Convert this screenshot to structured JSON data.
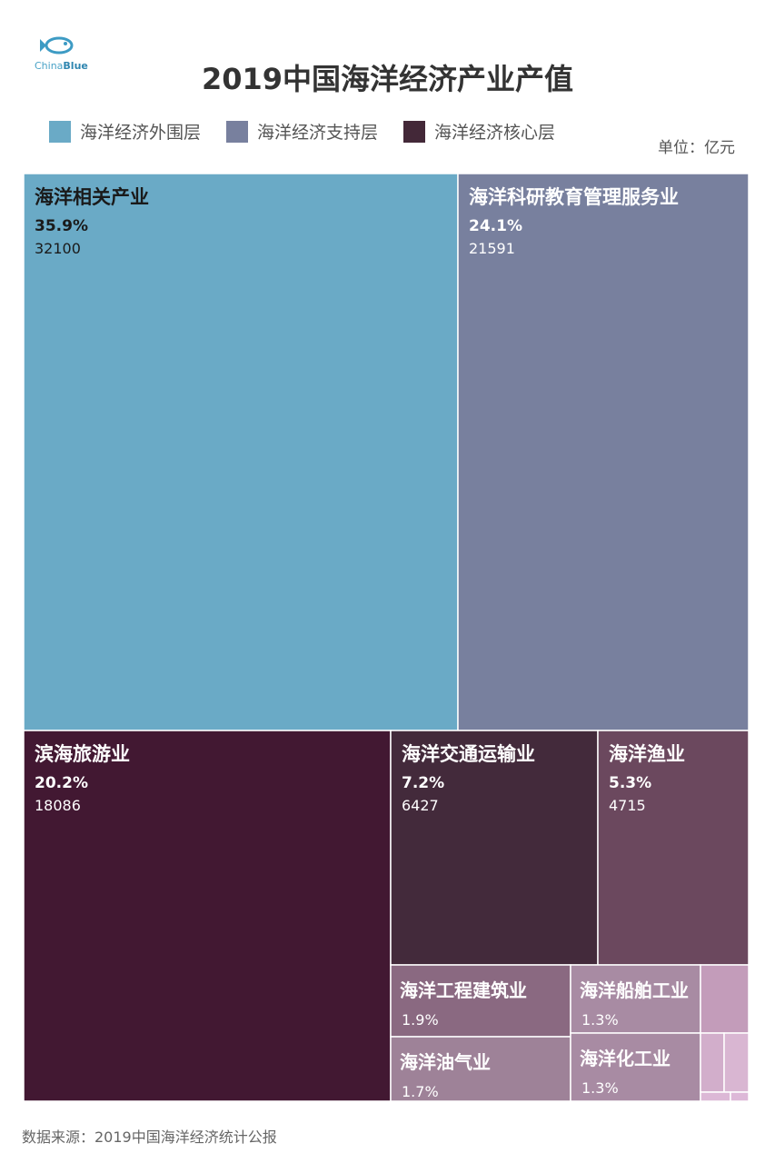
{
  "header": {
    "logo_text_prefix": "China",
    "logo_text_suffix": "Blue",
    "title": "2019中国海洋经济产业产值"
  },
  "legend": [
    {
      "label": "海洋经济外围层",
      "color": "#6aaac6"
    },
    {
      "label": "海洋经济支持层",
      "color": "#78809e"
    },
    {
      "label": "海洋经济核心层",
      "color": "#432838"
    }
  ],
  "unit": "单位：亿元",
  "source": "数据来源：2019中国海洋经济统计公报",
  "chart_data": {
    "type": "treemap",
    "title": "2019中国海洋经济产业产值",
    "unit": "亿元",
    "items": [
      {
        "name": "海洋相关产业",
        "pct": "35.9%",
        "value": 32100,
        "value_label": "32100",
        "group": "海洋经济外围层",
        "color": "#6aaac6"
      },
      {
        "name": "海洋科研教育管理服务业",
        "pct": "24.1%",
        "value": 21591,
        "value_label": "21591",
        "group": "海洋经济支持层",
        "color": "#78809e"
      },
      {
        "name": "滨海旅游业",
        "pct": "20.2%",
        "value": 18086,
        "value_label": "18086",
        "group": "海洋经济核心层",
        "color": "#421832"
      },
      {
        "name": "海洋交通运输业",
        "pct": "7.2%",
        "value": 6427,
        "value_label": "6427",
        "group": "海洋经济核心层",
        "color": "#432a3b"
      },
      {
        "name": "海洋渔业",
        "pct": "5.3%",
        "value": 4715,
        "value_label": "4715",
        "group": "海洋经济核心层",
        "color": "#6b485e"
      },
      {
        "name": "海洋工程建筑业",
        "pct": "1.9%",
        "group": "海洋经济核心层",
        "color": "#8a6981"
      },
      {
        "name": "海洋船舶工业",
        "pct": "1.3%",
        "group": "海洋经济核心层",
        "color": "#a88ba3"
      },
      {
        "name": "海洋油气业",
        "pct": "1.7%",
        "group": "海洋经济核心层",
        "color": "#9e8298"
      },
      {
        "name": "海洋化工业",
        "pct": "1.3%",
        "group": "海洋经济核心层",
        "color": "#a88ba3"
      },
      {
        "group": "海洋经济核心层",
        "color": "#c39cba"
      },
      {
        "group": "海洋经济核心层",
        "color": "#d2aecb"
      },
      {
        "group": "海洋经济核心层",
        "color": "#d9b6d2"
      },
      {
        "group": "海洋经济核心层",
        "color": "#dcb8d6"
      },
      {
        "group": "海洋经济核心层",
        "color": "#ddb8d8"
      }
    ]
  }
}
